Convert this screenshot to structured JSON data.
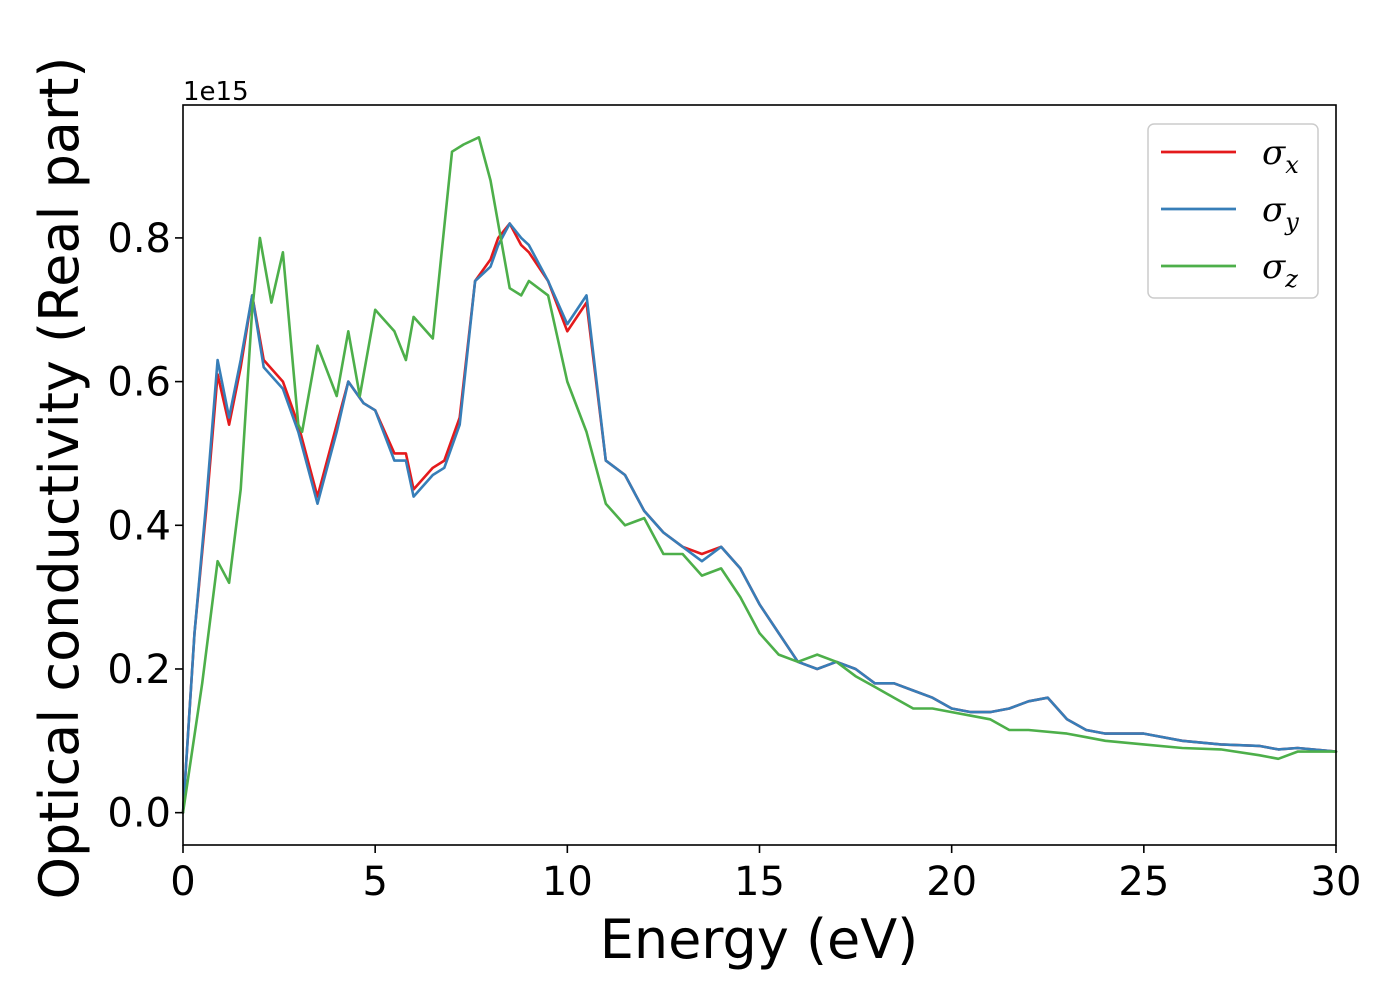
{
  "chart_data": {
    "type": "line",
    "title": "",
    "xlabel": "Energy (eV)",
    "ylabel": "Optical conductivity (Real part)",
    "y_multiplier": "1e15",
    "xlim": [
      0,
      30
    ],
    "ylim": [
      -0.045,
      0.985
    ],
    "xticks": [
      "0",
      "5",
      "10",
      "15",
      "20",
      "25",
      "30"
    ],
    "yticks": [
      "0.0",
      "0.2",
      "0.4",
      "0.6",
      "0.8"
    ],
    "grid": false,
    "legend_position": "top-right",
    "series": [
      {
        "name": "σx",
        "label_main": "σ",
        "label_sub": "x",
        "color": "#e41a1c",
        "x": [
          0,
          0.3,
          0.6,
          0.9,
          1.2,
          1.5,
          1.8,
          2.1,
          2.6,
          3.0,
          3.5,
          4.0,
          4.3,
          4.7,
          5.0,
          5.5,
          5.8,
          6.0,
          6.5,
          6.8,
          7.2,
          7.6,
          8.0,
          8.2,
          8.5,
          8.8,
          9.0,
          9.5,
          10.0,
          10.5,
          11.0,
          11.5,
          12.0,
          12.5,
          13.0,
          13.5,
          14.0,
          14.5,
          15.0,
          15.5,
          16.0,
          16.5,
          17.0,
          17.5,
          18.0,
          18.5,
          19.0,
          19.5,
          20.0,
          20.5,
          21.0,
          21.5,
          22.0,
          22.5,
          23.0,
          23.5,
          24.0,
          25.0,
          26.0,
          27.0,
          28.0,
          28.5,
          29.0,
          30.0
        ],
        "values": [
          0.0,
          0.25,
          0.42,
          0.61,
          0.54,
          0.62,
          0.72,
          0.63,
          0.6,
          0.54,
          0.44,
          0.54,
          0.6,
          0.57,
          0.56,
          0.5,
          0.5,
          0.45,
          0.48,
          0.49,
          0.55,
          0.74,
          0.77,
          0.8,
          0.82,
          0.79,
          0.78,
          0.74,
          0.67,
          0.71,
          0.49,
          0.47,
          0.42,
          0.39,
          0.37,
          0.36,
          0.37,
          0.34,
          0.29,
          0.25,
          0.21,
          0.2,
          0.21,
          0.2,
          0.18,
          0.18,
          0.17,
          0.16,
          0.145,
          0.14,
          0.14,
          0.145,
          0.155,
          0.16,
          0.13,
          0.115,
          0.11,
          0.11,
          0.1,
          0.095,
          0.093,
          0.088,
          0.09,
          0.085
        ]
      },
      {
        "name": "σy",
        "label_main": "σ",
        "label_sub": "y",
        "color": "#377eb8",
        "x": [
          0,
          0.3,
          0.6,
          0.9,
          1.2,
          1.5,
          1.8,
          2.1,
          2.6,
          3.0,
          3.5,
          4.0,
          4.3,
          4.7,
          5.0,
          5.5,
          5.8,
          6.0,
          6.5,
          6.8,
          7.2,
          7.6,
          8.0,
          8.2,
          8.5,
          8.8,
          9.0,
          9.5,
          10.0,
          10.5,
          11.0,
          11.5,
          12.0,
          12.5,
          13.0,
          13.5,
          14.0,
          14.5,
          15.0,
          15.5,
          16.0,
          16.5,
          17.0,
          17.5,
          18.0,
          18.5,
          19.0,
          19.5,
          20.0,
          20.5,
          21.0,
          21.5,
          22.0,
          22.5,
          23.0,
          23.5,
          24.0,
          25.0,
          26.0,
          27.0,
          28.0,
          28.5,
          29.0,
          30.0
        ],
        "values": [
          0.0,
          0.25,
          0.43,
          0.63,
          0.55,
          0.63,
          0.72,
          0.62,
          0.59,
          0.53,
          0.43,
          0.53,
          0.6,
          0.57,
          0.56,
          0.49,
          0.49,
          0.44,
          0.47,
          0.48,
          0.54,
          0.74,
          0.76,
          0.79,
          0.82,
          0.8,
          0.79,
          0.74,
          0.68,
          0.72,
          0.49,
          0.47,
          0.42,
          0.39,
          0.37,
          0.35,
          0.37,
          0.34,
          0.29,
          0.25,
          0.21,
          0.2,
          0.21,
          0.2,
          0.18,
          0.18,
          0.17,
          0.16,
          0.145,
          0.14,
          0.14,
          0.145,
          0.155,
          0.16,
          0.13,
          0.115,
          0.11,
          0.11,
          0.1,
          0.095,
          0.093,
          0.088,
          0.09,
          0.085
        ]
      },
      {
        "name": "σz",
        "label_main": "σ",
        "label_sub": "z",
        "color": "#4daf4a",
        "x": [
          0,
          0.5,
          0.9,
          1.2,
          1.5,
          1.8,
          2.0,
          2.3,
          2.6,
          3.0,
          3.1,
          3.5,
          4.0,
          4.3,
          4.6,
          5.0,
          5.5,
          5.8,
          6.0,
          6.5,
          7.0,
          7.3,
          7.7,
          8.0,
          8.5,
          8.8,
          9.0,
          9.5,
          10.0,
          10.5,
          11.0,
          11.5,
          12.0,
          12.5,
          13.0,
          13.5,
          14.0,
          14.5,
          15.0,
          15.5,
          16.0,
          16.5,
          17.0,
          17.5,
          18.0,
          18.5,
          19.0,
          19.5,
          20.0,
          20.5,
          21.0,
          21.5,
          22.0,
          23.0,
          23.5,
          24.0,
          25.0,
          26.0,
          27.0,
          28.0,
          28.5,
          29.0,
          30.0
        ],
        "values": [
          0.0,
          0.18,
          0.35,
          0.32,
          0.45,
          0.7,
          0.8,
          0.71,
          0.78,
          0.54,
          0.53,
          0.65,
          0.58,
          0.67,
          0.58,
          0.7,
          0.67,
          0.63,
          0.69,
          0.66,
          0.92,
          0.93,
          0.94,
          0.88,
          0.73,
          0.72,
          0.74,
          0.72,
          0.6,
          0.53,
          0.43,
          0.4,
          0.41,
          0.36,
          0.36,
          0.33,
          0.34,
          0.3,
          0.25,
          0.22,
          0.21,
          0.22,
          0.21,
          0.19,
          0.175,
          0.16,
          0.145,
          0.145,
          0.14,
          0.135,
          0.13,
          0.115,
          0.115,
          0.11,
          0.105,
          0.1,
          0.095,
          0.09,
          0.088,
          0.08,
          0.075,
          0.085,
          0.085
        ]
      }
    ]
  }
}
